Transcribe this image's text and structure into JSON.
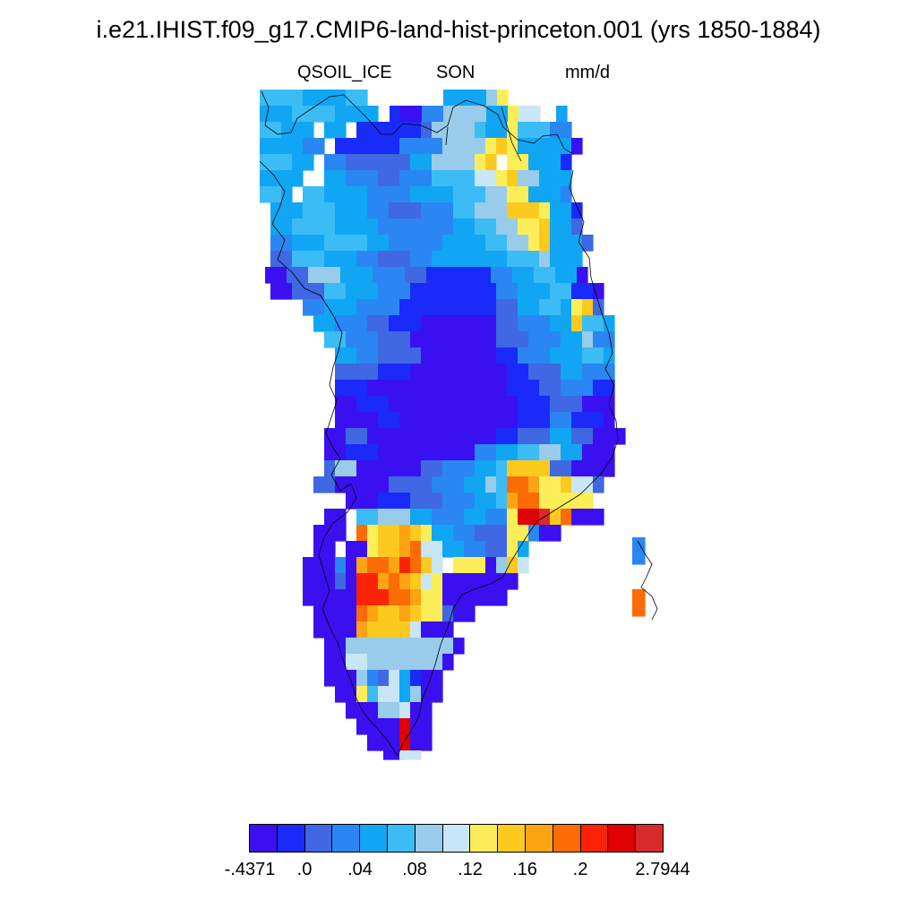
{
  "header": {
    "title": "i.e21.IHIST.f09_g17.CMIP6-land-hist-princeton.001 (yrs 1850-1884)",
    "variable": "QSOIL_ICE",
    "season": "SON",
    "units": "mm/d"
  },
  "colorbar": {
    "colors": [
      "#3a10f0",
      "#1a2af8",
      "#3f68e2",
      "#2a86f2",
      "#10a6f4",
      "#3cbcf4",
      "#98ccea",
      "#c8e6f6",
      "#fcee58",
      "#fcca1e",
      "#fca412",
      "#fc6c06",
      "#fc2206",
      "#de0202",
      "#d82a2a"
    ],
    "labels": [
      "-.4371",
      ".0",
      ".04",
      ".08",
      ".12",
      ".16",
      ".2",
      "2.7944"
    ]
  },
  "map_data": {
    "type": "gridded-field",
    "region": "Greenland",
    "missing_color": "#ffffff",
    "coastline_color": "#000000"
  }
}
